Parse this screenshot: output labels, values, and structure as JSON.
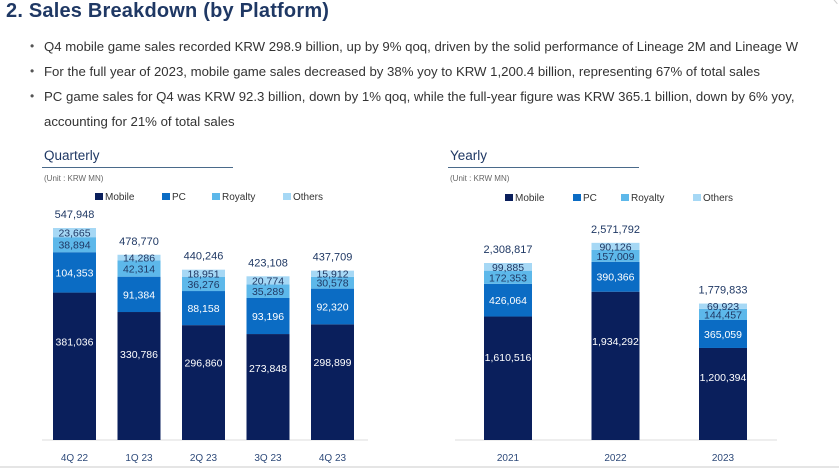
{
  "page": {
    "title": "2. Sales Breakdown (by Platform)",
    "bullets": [
      "Q4 mobile game sales recorded KRW 298.9 billion, up by 9% qoq, driven by the solid performance of Lineage 2M and Lineage W",
      "For the full year of 2023, mobile game sales decreased by 38% yoy to KRW 1,200.4 billion, representing 67% of total sales",
      "PC game sales for Q4 was KRW 92.3 billion, down by 1% qoq, while the full-year figure was KRW 365.1 billion, down by 6% yoy, accounting for 21% of total sales"
    ]
  },
  "colors": {
    "Mobile": "#0a1f5c",
    "PC": "#0b6cc4",
    "Royalty": "#5db8ea",
    "Others": "#a6d8f5",
    "title": "#1f3864"
  },
  "chart_data": [
    {
      "type": "bar",
      "stacked": true,
      "title": "Quarterly",
      "unit": "(Unit : KRW MN)",
      "categories": [
        "4Q 22",
        "1Q 23",
        "2Q 23",
        "3Q 23",
        "4Q 23"
      ],
      "series": [
        {
          "name": "Mobile",
          "values": [
            381036,
            330786,
            296860,
            273848,
            298899
          ]
        },
        {
          "name": "PC",
          "values": [
            104353,
            91384,
            88158,
            93196,
            92320
          ]
        },
        {
          "name": "Royalty",
          "values": [
            38894,
            42314,
            36276,
            35289,
            30578
          ]
        },
        {
          "name": "Others",
          "values": [
            23665,
            14286,
            18951,
            20774,
            15912
          ]
        }
      ],
      "totals": [
        547948,
        478770,
        440246,
        423108,
        437709
      ],
      "legend": [
        "Mobile",
        "PC",
        "Royalty",
        "Others"
      ],
      "legend_position": "top",
      "grid": false
    },
    {
      "type": "bar",
      "stacked": true,
      "title": "Yearly",
      "unit": "(Unit : KRW MN)",
      "categories": [
        "2021",
        "2022",
        "2023"
      ],
      "series": [
        {
          "name": "Mobile",
          "values": [
            1610516,
            1934292,
            1200394
          ]
        },
        {
          "name": "PC",
          "values": [
            426064,
            390366,
            365059
          ]
        },
        {
          "name": "Royalty",
          "values": [
            172353,
            157009,
            144457
          ]
        },
        {
          "name": "Others",
          "values": [
            99885,
            90126,
            69923
          ]
        }
      ],
      "totals": [
        2308817,
        2571792,
        1779833
      ],
      "legend": [
        "Mobile",
        "PC",
        "Royalty",
        "Others"
      ],
      "legend_position": "top",
      "grid": false
    }
  ]
}
